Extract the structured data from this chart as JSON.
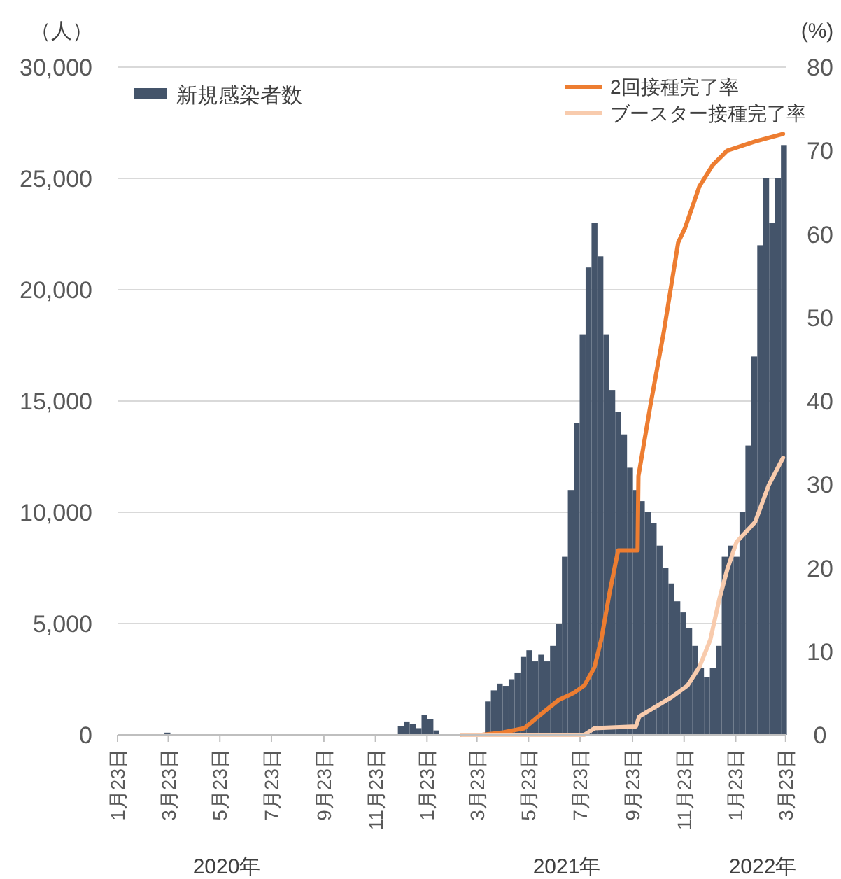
{
  "chart_data": {
    "type": "bar",
    "ylabel": "（人）",
    "y2label": "(%)",
    "xlim": [
      "2020-01-23",
      "2022-03-24"
    ],
    "xticks": [
      {
        "value": "2020-01-23",
        "label": "1月23日"
      },
      {
        "value": "2020-03-23",
        "label": "3月23日"
      },
      {
        "value": "2020-05-23",
        "label": "5月23日"
      },
      {
        "value": "2020-07-23",
        "label": "7月23日"
      },
      {
        "value": "2020-09-23",
        "label": "9月23日"
      },
      {
        "value": "2020-11-23",
        "label": "11月23日"
      },
      {
        "value": "2021-01-23",
        "label": "1月23日"
      },
      {
        "value": "2021-03-23",
        "label": "3月23日"
      },
      {
        "value": "2021-05-23",
        "label": "5月23日"
      },
      {
        "value": "2021-07-23",
        "label": "7月23日"
      },
      {
        "value": "2021-09-23",
        "label": "9月23日"
      },
      {
        "value": "2021-11-23",
        "label": "11月23日"
      },
      {
        "value": "2022-01-23",
        "label": "1月23日"
      },
      {
        "value": "2022-03-23",
        "label": "3月23日"
      }
    ],
    "ylim": [
      0,
      30000
    ],
    "yticks": [
      {
        "value": 0,
        "label": "0"
      },
      {
        "value": 5000,
        "label": "5,000"
      },
      {
        "value": 10000,
        "label": "10,000"
      },
      {
        "value": 15000,
        "label": "15,000"
      },
      {
        "value": 20000,
        "label": "20,000"
      },
      {
        "value": 25000,
        "label": "25,000"
      },
      {
        "value": 30000,
        "label": "30,000"
      }
    ],
    "y2lim": [
      0,
      80
    ],
    "y2ticks": [
      0,
      10,
      20,
      30,
      40,
      50,
      60,
      70,
      80
    ],
    "grid": "y",
    "legend": "top",
    "annotations": [
      "2020年",
      "2021年",
      "2022年"
    ],
    "series": [
      {
        "name": "新規感染者数",
        "color": "#44546a",
        "x": [
          "2020-03-22",
          "2020-12-23",
          "2020-12-30",
          "2021-01-06",
          "2021-01-13",
          "2021-01-20",
          "2021-01-27",
          "2021-02-03",
          "2021-03-29",
          "2021-04-05",
          "2021-04-12",
          "2021-04-19",
          "2021-04-26",
          "2021-05-03",
          "2021-05-10",
          "2021-05-17",
          "2021-05-24",
          "2021-05-31",
          "2021-06-07",
          "2021-06-14",
          "2021-06-21",
          "2021-06-28",
          "2021-07-05",
          "2021-07-12",
          "2021-07-19",
          "2021-07-26",
          "2021-08-02",
          "2021-08-09",
          "2021-08-16",
          "2021-08-23",
          "2021-08-30",
          "2021-09-06",
          "2021-09-13",
          "2021-09-20",
          "2021-09-27",
          "2021-10-04",
          "2021-10-11",
          "2021-10-18",
          "2021-10-25",
          "2021-11-01",
          "2021-11-08",
          "2021-11-15",
          "2021-11-22",
          "2021-11-29",
          "2021-12-06",
          "2021-12-13",
          "2021-12-20",
          "2021-12-27",
          "2022-01-03",
          "2022-01-10",
          "2022-01-17",
          "2022-01-24",
          "2022-01-31",
          "2022-02-07",
          "2022-02-14",
          "2022-02-21",
          "2022-02-28",
          "2022-03-07",
          "2022-03-14",
          "2022-03-21"
        ],
        "values": [
          100,
          400,
          600,
          500,
          300,
          900,
          700,
          200,
          null,
          1500,
          2000,
          2300,
          2200,
          2500,
          2800,
          3500,
          3800,
          3300,
          3600,
          3300,
          4000,
          5000,
          8000,
          11000,
          14000,
          18000,
          21000,
          23000,
          21500,
          18000,
          15500,
          14500,
          13500,
          12000,
          11000,
          10500,
          10000,
          9500,
          8500,
          7500,
          6800,
          6000,
          5500,
          4800,
          4000,
          3000,
          2600,
          3000,
          4000,
          8000,
          8500,
          8000,
          10000,
          13000,
          17000,
          22000,
          25000,
          23000,
          25000,
          26500
        ]
      },
      {
        "name": "2回接種完了率",
        "type": "line",
        "axis": "y2",
        "color": "#ed7d31",
        "x": [
          "2021-03-05",
          "2021-03-29",
          "2021-04-23",
          "2021-05-18",
          "2021-06-12",
          "2021-06-28",
          "2021-07-15",
          "2021-07-28",
          "2021-08-09",
          "2021-08-17",
          "2021-08-27",
          "2021-09-06",
          "2021-09-14",
          "2021-09-29",
          "2021-09-30",
          "2021-10-14",
          "2021-10-30",
          "2021-11-16",
          "2021-11-24",
          "2021-12-11",
          "2021-12-27",
          "2022-01-13",
          "2022-02-15",
          "2022-03-20"
        ],
        "values": [
          0,
          0,
          0.3,
          0.8,
          2.9,
          4.2,
          5.0,
          5.9,
          8.1,
          11.4,
          17.1,
          22.1,
          22.1,
          22.1,
          31.0,
          39.4,
          48.3,
          59,
          60.7,
          65.7,
          68.3,
          70,
          71.1,
          72
        ]
      },
      {
        "name": "ブースター接種完了率",
        "type": "line",
        "axis": "y2",
        "color": "#f8cbad",
        "x": [
          "2021-03-05",
          "2021-07-28",
          "2021-08-09",
          "2021-09-27",
          "2021-10-01",
          "2021-11-08",
          "2021-11-27",
          "2021-12-11",
          "2021-12-24",
          "2022-01-04",
          "2022-01-13",
          "2022-01-24",
          "2022-02-15",
          "2022-03-03",
          "2022-03-20"
        ],
        "values": [
          0,
          0,
          0.8,
          1.0,
          2.2,
          4.5,
          5.9,
          8.1,
          11.4,
          16.4,
          19.8,
          23.1,
          25.5,
          29.9,
          33.2
        ]
      }
    ]
  }
}
